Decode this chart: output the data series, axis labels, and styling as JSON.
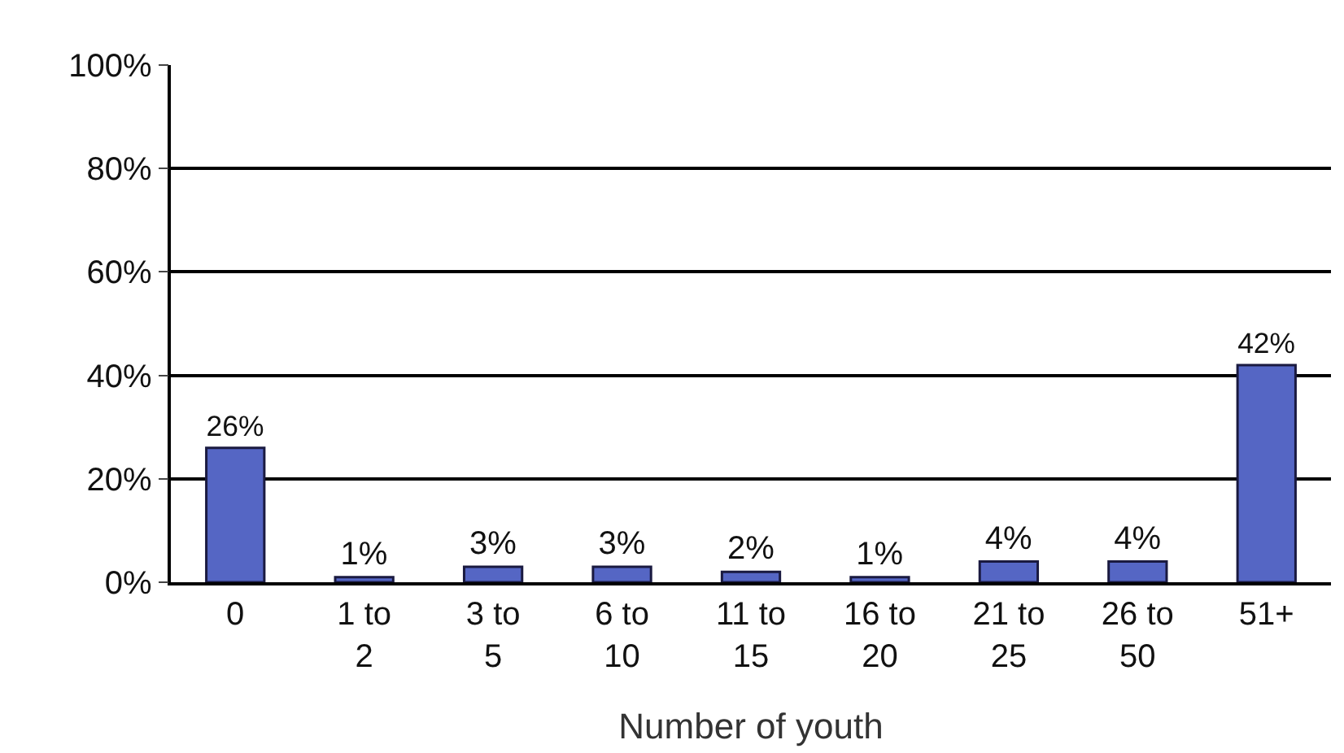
{
  "chart_data": {
    "type": "bar",
    "xlabel": "Number of youth",
    "categories": [
      "0",
      "1 to 2",
      "3 to 5",
      "6 to 10",
      "11 to 15",
      "16 to 20",
      "21 to 25",
      "26 to 50",
      "51+"
    ],
    "values": [
      26,
      1,
      3,
      3,
      2,
      1,
      4,
      4,
      42
    ],
    "value_labels": [
      "26%",
      "1%",
      "3%",
      "3%",
      "2%",
      "1%",
      "4%",
      "4%",
      "42%"
    ],
    "color": "#5566c4",
    "ylim": [
      0,
      100
    ],
    "yticks": [
      {
        "value": 0,
        "label": "0%"
      },
      {
        "value": 20,
        "label": "20%"
      },
      {
        "value": 40,
        "label": "40%"
      },
      {
        "value": 60,
        "label": "60%"
      },
      {
        "value": 80,
        "label": "80%"
      },
      {
        "value": 100,
        "label": "100%"
      }
    ],
    "grid": "y",
    "legend": false
  }
}
